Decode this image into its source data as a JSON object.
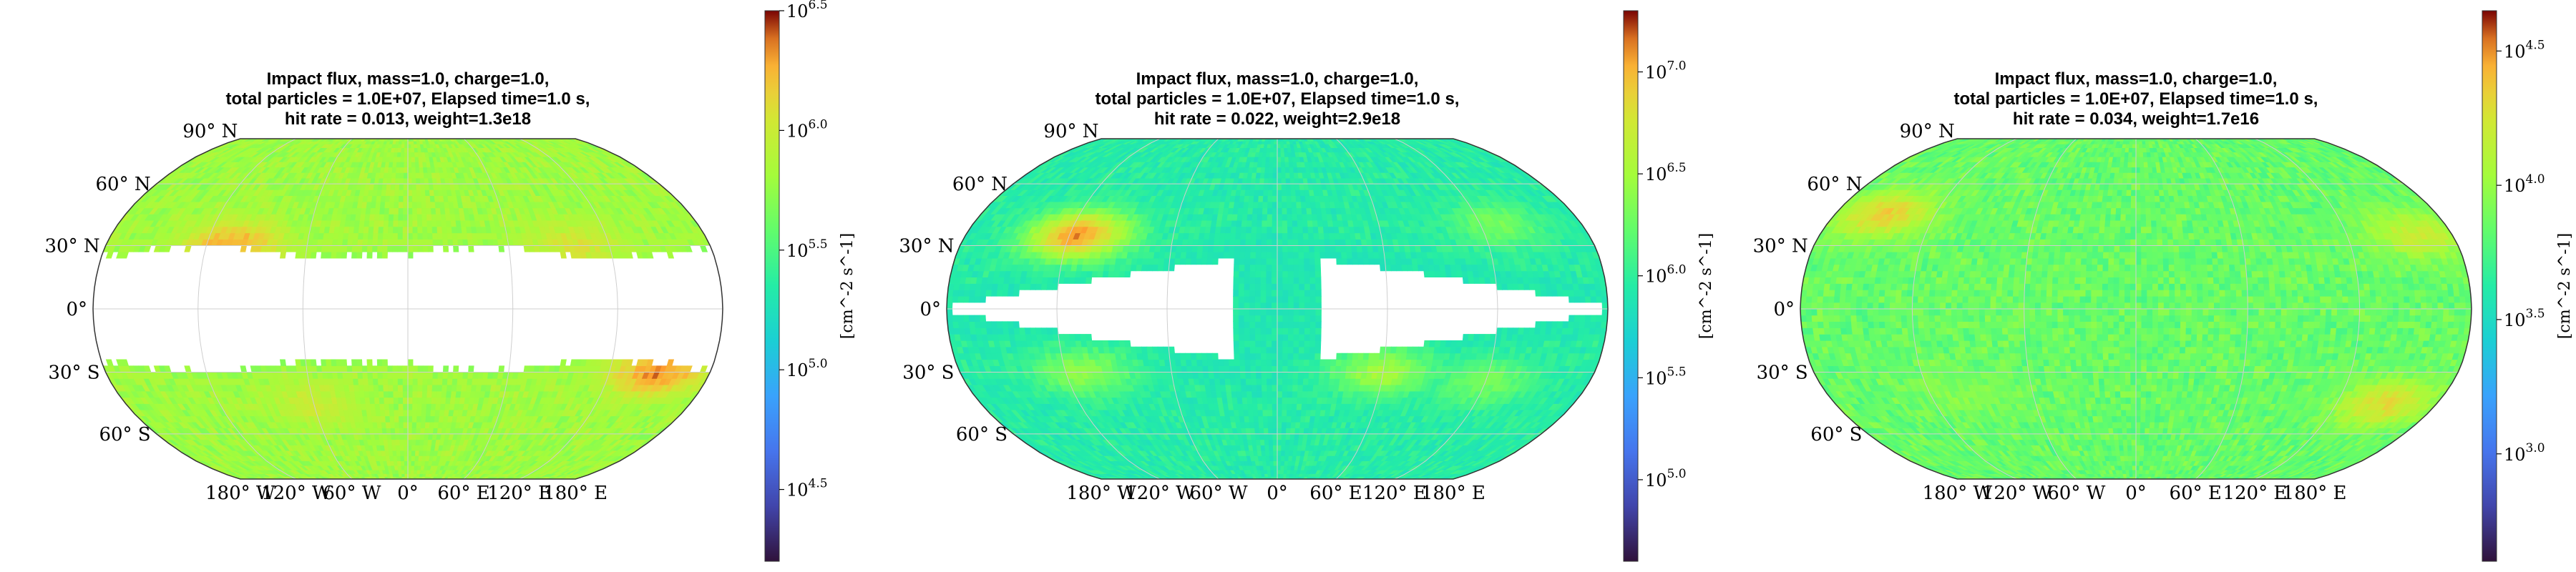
{
  "chart_data": [
    {
      "type": "heatmap",
      "projection": "Robinson",
      "title": [
        "Impact flux, mass=1.0, charge=1.0,",
        "total particles = 1.0E+07, Elapsed time=1.0 s,",
        "hit rate = 0.013, weight=1.3e18"
      ],
      "colorbar_label": "[cm^-2 s^-1]",
      "colorbar_range_log10": [
        4.2,
        6.5
      ],
      "colorbar_ticks": [
        {
          "base": "10",
          "exp": "6.5",
          "value": 6.5
        },
        {
          "base": "10",
          "exp": "6.0",
          "value": 6.0
        },
        {
          "base": "10",
          "exp": "5.5",
          "value": 5.5
        },
        {
          "base": "10",
          "exp": "5.0",
          "value": 5.0
        },
        {
          "base": "10",
          "exp": "4.5",
          "value": 4.5
        }
      ],
      "lat_labels": [
        {
          "text": "90° N",
          "lat": 90
        },
        {
          "text": "60° N",
          "lat": 60
        },
        {
          "text": "30° N",
          "lat": 30
        },
        {
          "text": "0°",
          "lat": 0
        },
        {
          "text": "30° S",
          "lat": -30
        },
        {
          "text": "60° S",
          "lat": -60
        }
      ],
      "lon_labels": [
        {
          "text": "180° W",
          "lon": -180
        },
        {
          "text": "120° W",
          "lon": -120
        },
        {
          "text": "60° W",
          "lon": -60
        },
        {
          "text": "0°",
          "lon": 0
        },
        {
          "text": "60° E",
          "lon": 60
        },
        {
          "text": "120° E",
          "lon": 120
        },
        {
          "text": "180° E",
          "lon": 180
        }
      ],
      "field": {
        "pattern": "gap",
        "base": 5.75,
        "gap_half_width_deg": 27,
        "hotspots": [
          {
            "lon": -105,
            "lat": 30,
            "val": 6.3
          },
          {
            "lon": 150,
            "lat": -30,
            "val": 6.35
          },
          {
            "lon": 100,
            "lat": 30,
            "val": 6.05
          },
          {
            "lon": -60,
            "lat": -45,
            "val": 6.0
          }
        ]
      }
    },
    {
      "type": "heatmap",
      "projection": "Robinson",
      "title": [
        "Impact flux, mass=1.0, charge=1.0,",
        "total particles = 1.0E+07, Elapsed time=1.0 s,",
        "hit rate = 0.022, weight=2.9e18"
      ],
      "colorbar_label": "[cm^-2 s^-1]",
      "colorbar_range_log10": [
        4.6,
        7.3
      ],
      "colorbar_ticks": [
        {
          "base": "10",
          "exp": "7.0",
          "value": 7.0
        },
        {
          "base": "10",
          "exp": "6.5",
          "value": 6.5
        },
        {
          "base": "10",
          "exp": "6.0",
          "value": 6.0
        },
        {
          "base": "10",
          "exp": "5.5",
          "value": 5.5
        },
        {
          "base": "10",
          "exp": "5.0",
          "value": 5.0
        }
      ],
      "lat_labels": [
        {
          "text": "90° N",
          "lat": 90
        },
        {
          "text": "60° N",
          "lat": 60
        },
        {
          "text": "30° N",
          "lat": 30
        },
        {
          "text": "0°",
          "lat": 0
        },
        {
          "text": "30° S",
          "lat": -30
        },
        {
          "text": "60° S",
          "lat": -60
        }
      ],
      "lon_labels": [
        {
          "text": "180° W",
          "lon": -180
        },
        {
          "text": "120° W",
          "lon": -120
        },
        {
          "text": "60° W",
          "lon": -60
        },
        {
          "text": "0°",
          "lon": 0
        },
        {
          "text": "60° E",
          "lon": 60
        },
        {
          "text": "120° E",
          "lon": 120
        },
        {
          "text": "180° E",
          "lon": 180
        }
      ],
      "field": {
        "pattern": "hourglass",
        "base": 5.9,
        "hotspots": [
          {
            "lon": -115,
            "lat": 35,
            "val": 7.1
          },
          {
            "lon": -110,
            "lat": -30,
            "val": 6.4
          },
          {
            "lon": 60,
            "lat": -30,
            "val": 6.5
          },
          {
            "lon": 120,
            "lat": -35,
            "val": 6.3
          },
          {
            "lon": 130,
            "lat": 40,
            "val": 6.3
          }
        ]
      }
    },
    {
      "type": "heatmap",
      "projection": "Robinson",
      "title": [
        "Impact flux, mass=1.0, charge=1.0,",
        "total particles = 1.0E+07, Elapsed time=1.0 s,",
        "hit rate = 0.034, weight=1.7e16"
      ],
      "colorbar_label": "[cm^-2 s^-1]",
      "colorbar_range_log10": [
        2.6,
        4.65
      ],
      "colorbar_ticks": [
        {
          "base": "10",
          "exp": "4.5",
          "value": 4.5
        },
        {
          "base": "10",
          "exp": "4.0",
          "value": 4.0
        },
        {
          "base": "10",
          "exp": "3.5",
          "value": 3.5
        },
        {
          "base": "10",
          "exp": "3.0",
          "value": 3.0
        }
      ],
      "lat_labels": [
        {
          "text": "90° N",
          "lat": 90
        },
        {
          "text": "60° N",
          "lat": 60
        },
        {
          "text": "30° N",
          "lat": 30
        },
        {
          "text": "0°",
          "lat": 0
        },
        {
          "text": "30° S",
          "lat": -30
        },
        {
          "text": "60° S",
          "lat": -60
        }
      ],
      "lon_labels": [
        {
          "text": "180° W",
          "lon": -180
        },
        {
          "text": "120° W",
          "lon": -120
        },
        {
          "text": "60° W",
          "lon": -60
        },
        {
          "text": "0°",
          "lon": 0
        },
        {
          "text": "60° E",
          "lon": 60
        },
        {
          "text": "120° E",
          "lon": 120
        },
        {
          "text": "180° E",
          "lon": 180
        }
      ],
      "field": {
        "pattern": "uniform",
        "base": 3.8,
        "hotspots": [
          {
            "lon": -150,
            "lat": 45,
            "val": 4.35
          },
          {
            "lon": 160,
            "lat": 35,
            "val": 4.2
          },
          {
            "lon": 150,
            "lat": -45,
            "val": 4.3
          },
          {
            "lon": -100,
            "lat": -40,
            "val": 3.95
          }
        ]
      }
    }
  ]
}
